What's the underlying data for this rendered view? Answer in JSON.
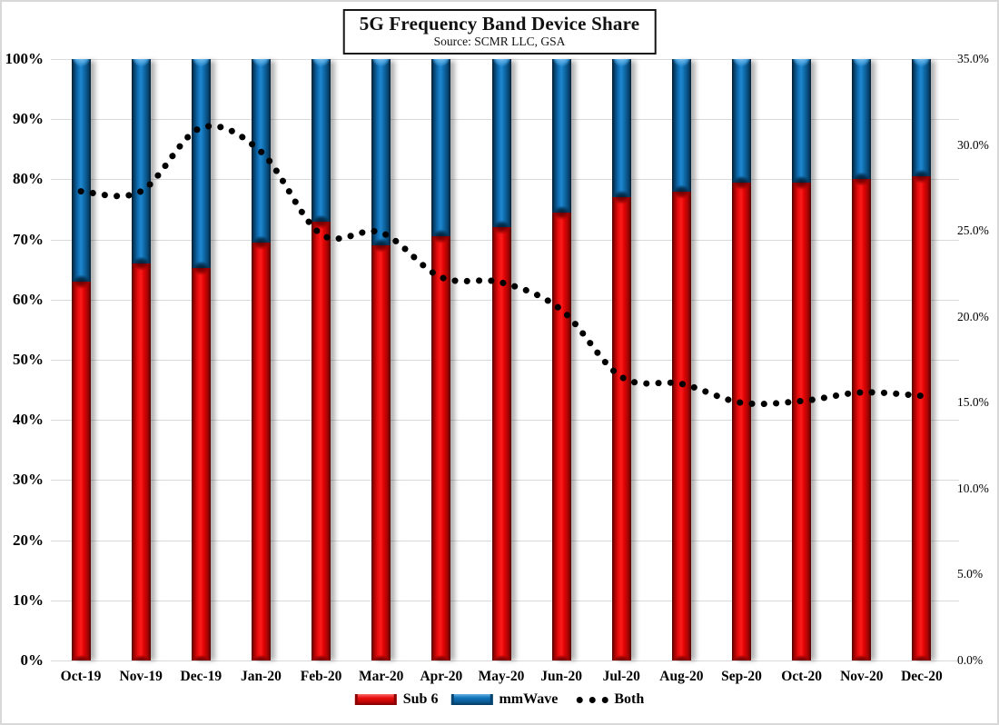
{
  "figure": {
    "title": "5G Frequency Band Device Share",
    "subtitle": "Source: SCMR LLC, GSA"
  },
  "legend": {
    "sub6": "Sub 6",
    "mmwave": "mmWave",
    "both": "Both"
  },
  "colors": {
    "sub6": "#e60c0c",
    "mmwave": "#1274bc",
    "both": "#000000",
    "gridline": "#d9d9d9"
  },
  "chart_data": {
    "type": "bar",
    "subtype": "100%-stacked-columns-with-dotted-line-overlay",
    "title": "5G Frequency Band Device Share",
    "subtitle": "Source: SCMR LLC, GSA",
    "categories": [
      "Oct-19",
      "Nov-19",
      "Dec-19",
      "Jan-20",
      "Feb-20",
      "Mar-20",
      "Apr-20",
      "May-20",
      "Jun-20",
      "Jul-20",
      "Aug-20",
      "Sep-20",
      "Oct-20",
      "Nov-20",
      "Dec-20"
    ],
    "series": [
      {
        "name": "Sub 6",
        "type": "bar",
        "stack": "devices",
        "axis": "left",
        "color": "#e60c0c",
        "values": [
          63.0,
          66.0,
          65.3,
          69.5,
          73.0,
          69.0,
          70.5,
          72.0,
          74.5,
          77.0,
          78.0,
          79.5,
          79.5,
          80.0,
          80.5
        ]
      },
      {
        "name": "mmWave",
        "type": "bar",
        "stack": "devices",
        "axis": "left",
        "color": "#1274bc",
        "values": [
          37.0,
          34.0,
          34.7,
          30.5,
          27.0,
          31.0,
          29.5,
          28.0,
          25.5,
          23.0,
          22.0,
          20.5,
          20.5,
          20.0,
          19.5
        ]
      },
      {
        "name": "Both",
        "type": "dotted-line",
        "axis": "right",
        "color": "#000000",
        "values": [
          27.3,
          27.3,
          31.0,
          29.6,
          24.8,
          24.9,
          22.3,
          22.0,
          20.4,
          16.5,
          16.1,
          15.0,
          15.1,
          15.6,
          15.4
        ]
      }
    ],
    "left_axis": {
      "ticks": [
        "100%",
        "90%",
        "80%",
        "70%",
        "60%",
        "50%",
        "40%",
        "30%",
        "20%",
        "10%",
        "0%"
      ],
      "min": 0,
      "max": 100,
      "format": "percent"
    },
    "right_axis": {
      "ticks": [
        "35.0%",
        "30.0%",
        "25.0%",
        "20.0%",
        "15.0%",
        "10.0%",
        "5.0%",
        "0.0%"
      ],
      "min": 0,
      "max": 35,
      "format": "percent"
    },
    "grid": "horizontal",
    "legend_position": "bottom"
  }
}
